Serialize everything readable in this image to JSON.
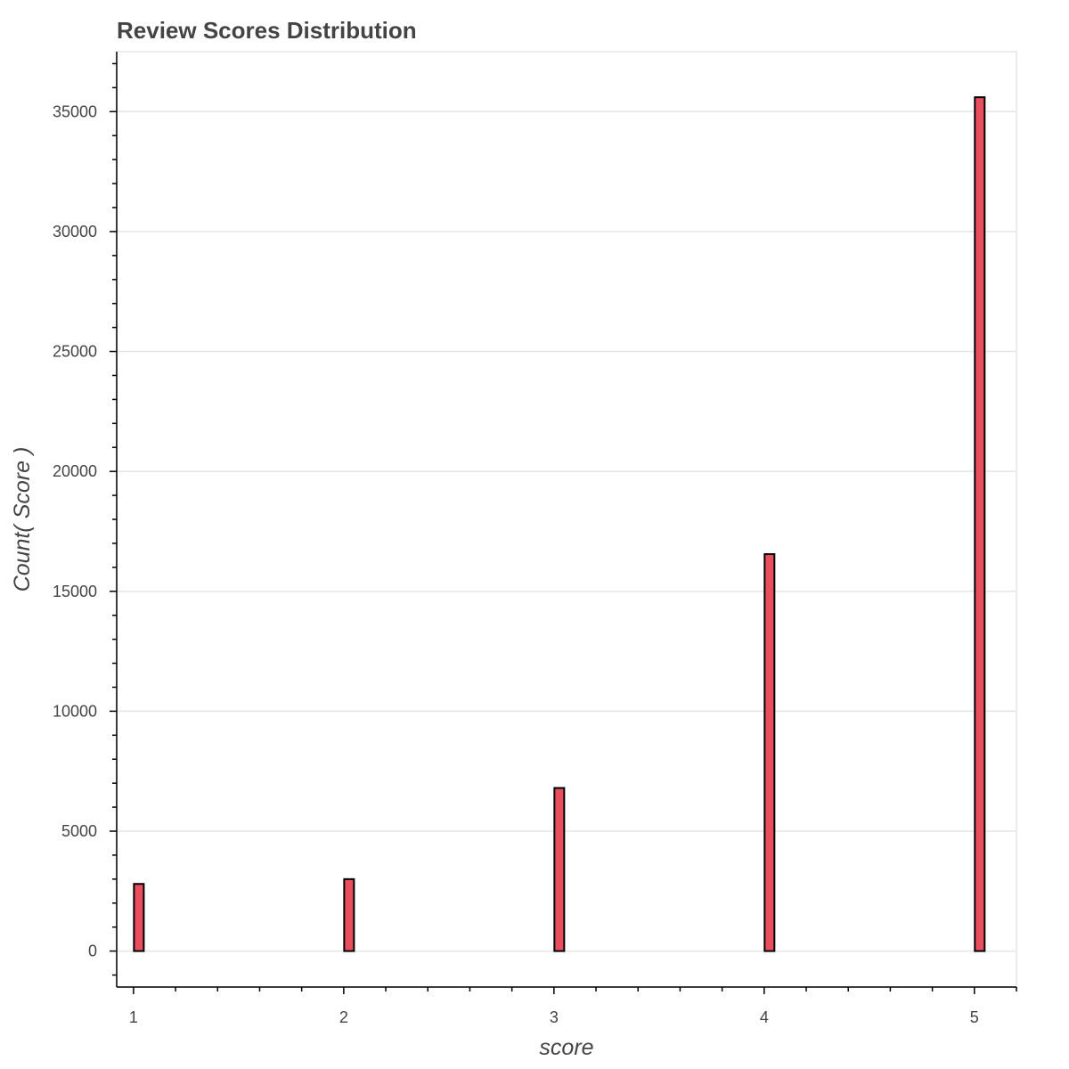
{
  "chart_data": {
    "type": "bar",
    "title": "Review Scores Distribution",
    "xlabel": "score",
    "ylabel": "Count( Score )",
    "x_ticks": [
      "1",
      "2",
      "3",
      "4",
      "5"
    ],
    "y_ticks": [
      "0",
      "5000",
      "10000",
      "15000",
      "20000",
      "25000",
      "30000",
      "35000"
    ],
    "x": [
      1,
      2,
      3,
      4,
      5
    ],
    "values": [
      2800,
      3000,
      6800,
      16550,
      35600
    ],
    "xlim": [
      0.92,
      5.2
    ],
    "ylim": [
      -1500,
      37500
    ],
    "grid": true,
    "colors": {
      "bar_fill": "#e94e5d",
      "bar_stroke": "#000000"
    }
  }
}
